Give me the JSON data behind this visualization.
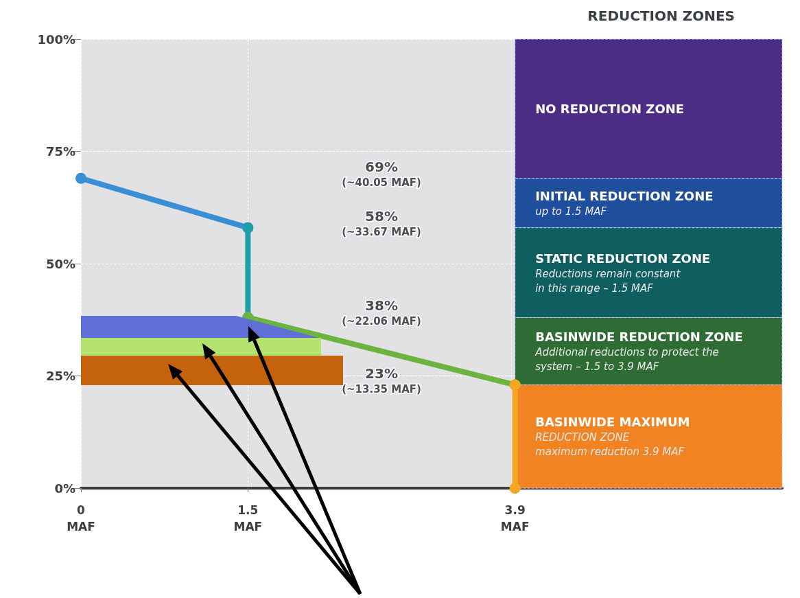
{
  "chart_data": {
    "type": "line",
    "title": "REDUCTION ZONES",
    "xlim": [
      0,
      6.3
    ],
    "xticks": [
      {
        "value": 0,
        "label": "0\nMAF"
      },
      {
        "value": 1.5,
        "label": "1.5\nMAF"
      },
      {
        "value": 3.9,
        "label": "3.9\nMAF"
      }
    ],
    "ylim": [
      0,
      100
    ],
    "yticks": [
      {
        "value": 0,
        "label": "0%"
      },
      {
        "value": 25,
        "label": "25%"
      },
      {
        "value": 50,
        "label": "50%"
      },
      {
        "value": 75,
        "label": "75%"
      },
      {
        "value": 100,
        "label": "100%"
      }
    ],
    "series": [
      {
        "color": "#3a8ed4",
        "x": [
          0,
          1.5
        ],
        "values": [
          69,
          58
        ]
      },
      {
        "color": "#1fa0a8",
        "x": [
          1.5,
          1.5
        ],
        "values": [
          58,
          38
        ]
      },
      {
        "color": "#6db33f",
        "x": [
          1.5,
          3.9
        ],
        "values": [
          38,
          23
        ]
      },
      {
        "color": "#f5a623",
        "x": [
          3.9,
          3.9
        ],
        "values": [
          23,
          0
        ]
      }
    ],
    "bands": [
      {
        "axis": "y",
        "from": 69,
        "to": 100,
        "label": "NO REDUCTION ZONE",
        "color": "#4b2d86"
      },
      {
        "axis": "y",
        "from": 58,
        "to": 69,
        "label": "INITIAL REDUCTION ZONE\nup to 1.5 MAF",
        "color": "#1f4e9c"
      },
      {
        "axis": "y",
        "from": 38,
        "to": 58,
        "label": "STATIC REDUCTION ZONE\nReductions remain constant\nin this range – 1.5 MAF",
        "color": "#0f5e60"
      },
      {
        "axis": "y",
        "from": 23,
        "to": 38,
        "label": "BASINWIDE REDUCTION ZONE\nAdditional reductions to protect the\nsystem – 1.5 to 3.9 MAF",
        "color": "#2f6b35"
      },
      {
        "axis": "y",
        "from": 0,
        "to": 23,
        "label": "BASINWIDE MAXIMUM\nREDUCTION ZONE\nmaximum reduction 3.9 MAF",
        "color": "#f28322"
      }
    ],
    "annotations": [
      "69%\n(~40.05 MAF)",
      "58%\n(~33.67 MAF)",
      "38%\n(~22.06 MAF)",
      "23%\n(~13.35 MAF)"
    ],
    "grid": true,
    "marker": "circle",
    "line_style": "solid"
  }
}
